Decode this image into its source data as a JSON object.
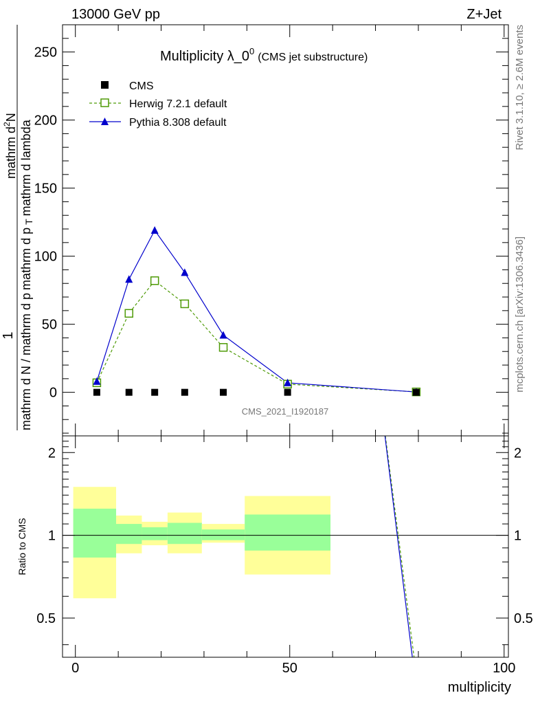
{
  "header": {
    "energy_label": "13000 GeV pp",
    "process_label": "Z+Jet"
  },
  "side_labels": {
    "rivet": "Rivet 3.1.10, ≥ 2.6M events",
    "mcplots": "mcplots.cern.ch [arXiv:1306.3436]"
  },
  "chart_data": [
    {
      "type": "line",
      "title": "Multiplicity λ_0",
      "title_superscript": "0",
      "subtitle": "(CMS jet substructure)",
      "watermark": "CMS_2021_I1920187",
      "ylabel_numerator": "1",
      "ylabel_denominator_line1": "mathrm d N / mathrm d p",
      "ylabel_mid": "mathrm d p",
      "ylabel_top": "mathrm d",
      "ylabel_top_sup": "2",
      "ylabel_top_N": "N",
      "ylabel_right": "mathrm d lambda",
      "ylabel_sub": "T",
      "xlim": [
        -3,
        101
      ],
      "ylim": [
        -32,
        270
      ],
      "yticks": [
        0,
        50,
        100,
        150,
        200,
        250
      ],
      "legend_position": "top-left",
      "series": [
        {
          "name": "CMS",
          "marker": "filled-square",
          "color": "#000000",
          "points": [
            [
              5,
              0
            ],
            [
              12.5,
              0
            ],
            [
              18.5,
              0
            ],
            [
              25.5,
              0
            ],
            [
              34.5,
              0
            ],
            [
              49.5,
              0
            ],
            [
              79.5,
              0
            ]
          ]
        },
        {
          "name": "Herwig 7.2.1 default",
          "marker": "open-square",
          "line": "dashed",
          "color": "#4e9a06",
          "points": [
            [
              5,
              7
            ],
            [
              12.5,
              58
            ],
            [
              18.5,
              82
            ],
            [
              25.5,
              65
            ],
            [
              34.5,
              33
            ],
            [
              49.5,
              6
            ],
            [
              79.5,
              0.3
            ]
          ]
        },
        {
          "name": "Pythia 8.308 default",
          "marker": "filled-triangle",
          "line": "solid",
          "color": "#0000cc",
          "points": [
            [
              5,
              8
            ],
            [
              12.5,
              83
            ],
            [
              18.5,
              119
            ],
            [
              25.5,
              88
            ],
            [
              34.5,
              42
            ],
            [
              49.5,
              7
            ],
            [
              79.5,
              0.2
            ]
          ]
        }
      ]
    },
    {
      "type": "line",
      "ylabel": "Ratio to CMS",
      "xlabel": "multiplicity",
      "xlim": [
        -3,
        101
      ],
      "ylim": [
        0.36,
        2.3
      ],
      "xticks": [
        0,
        50,
        100
      ],
      "yticks": [
        0.5,
        1,
        2
      ],
      "bands": [
        {
          "x0": -0.5,
          "x1": 9.5,
          "outer": [
            0.59,
            1.5
          ],
          "inner": [
            0.83,
            1.25
          ]
        },
        {
          "x0": 9.5,
          "x1": 15.5,
          "outer": [
            0.86,
            1.18
          ],
          "inner": [
            0.93,
            1.1
          ]
        },
        {
          "x0": 15.5,
          "x1": 21.5,
          "outer": [
            0.92,
            1.12
          ],
          "inner": [
            0.96,
            1.07
          ]
        },
        {
          "x0": 21.5,
          "x1": 29.5,
          "outer": [
            0.86,
            1.21
          ],
          "inner": [
            0.93,
            1.11
          ]
        },
        {
          "x0": 29.5,
          "x1": 39.5,
          "outer": [
            0.94,
            1.1
          ],
          "inner": [
            0.96,
            1.05
          ]
        },
        {
          "x0": 39.5,
          "x1": 59.5,
          "outer": [
            0.72,
            1.39
          ],
          "inner": [
            0.88,
            1.19
          ]
        }
      ],
      "series": [
        {
          "name": "Herwig 7.2.1 default",
          "color": "#4e9a06",
          "line": "dashed",
          "points": [
            [
              72.3,
              2.3
            ],
            [
              79,
              0.36
            ]
          ]
        },
        {
          "name": "Pythia 8.308 default",
          "color": "#0000cc",
          "line": "solid",
          "points": [
            [
              72.2,
              2.3
            ],
            [
              78.6,
              0.36
            ]
          ]
        }
      ]
    }
  ]
}
